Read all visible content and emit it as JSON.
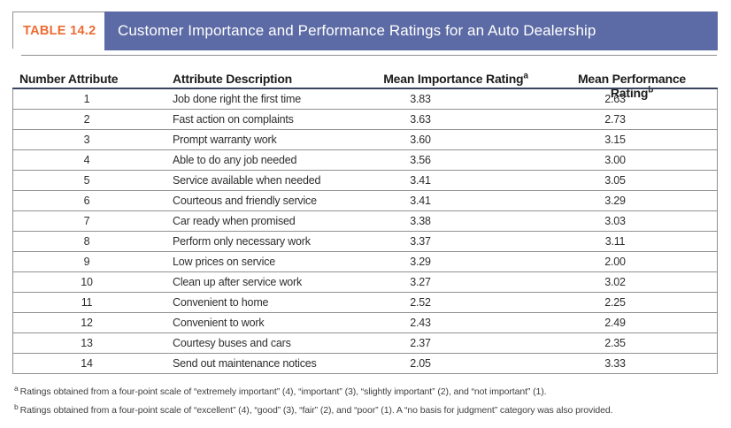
{
  "header": {
    "table_label": "TABLE 14.2",
    "title": "Customer Importance and Performance Ratings for an Auto Dealership"
  },
  "table": {
    "columns": [
      {
        "label": "Number Attribute",
        "sup": ""
      },
      {
        "label": "Attribute Description",
        "sup": ""
      },
      {
        "label": "Mean Importance Rating",
        "sup": "a"
      },
      {
        "label": "Mean Performance Rating",
        "sup": "b"
      }
    ],
    "rows": [
      {
        "number": "1",
        "description": "Job done right the first time",
        "importance": "3.83",
        "performance": "2.63"
      },
      {
        "number": "2",
        "description": "Fast action on complaints",
        "importance": "3.63",
        "performance": "2.73"
      },
      {
        "number": "3",
        "description": "Prompt warranty work",
        "importance": "3.60",
        "performance": "3.15"
      },
      {
        "number": "4",
        "description": "Able to do any job needed",
        "importance": "3.56",
        "performance": "3.00"
      },
      {
        "number": "5",
        "description": "Service available when needed",
        "importance": "3.41",
        "performance": "3.05"
      },
      {
        "number": "6",
        "description": "Courteous and friendly service",
        "importance": "3.41",
        "performance": "3.29"
      },
      {
        "number": "7",
        "description": "Car ready when promised",
        "importance": "3.38",
        "performance": "3.03"
      },
      {
        "number": "8",
        "description": "Perform only necessary work",
        "importance": "3.37",
        "performance": "3.11"
      },
      {
        "number": "9",
        "description": "Low prices on service",
        "importance": "3.29",
        "performance": "2.00"
      },
      {
        "number": "10",
        "description": "Clean up after service work",
        "importance": "3.27",
        "performance": "3.02"
      },
      {
        "number": "11",
        "description": "Convenient to home",
        "importance": "2.52",
        "performance": "2.25"
      },
      {
        "number": "12",
        "description": "Convenient to work",
        "importance": "2.43",
        "performance": "2.49"
      },
      {
        "number": "13",
        "description": "Courtesy buses and cars",
        "importance": "2.37",
        "performance": "2.35"
      },
      {
        "number": "14",
        "description": "Send out maintenance notices",
        "importance": "2.05",
        "performance": "3.33"
      }
    ]
  },
  "footnotes": [
    {
      "sup": "a",
      "text": "Ratings obtained from a four-point scale of “extremely important” (4), “important” (3), “slightly important” (2), and “not important” (1)."
    },
    {
      "sup": "b",
      "text": "Ratings obtained from a four-point scale of “excellent” (4), “good” (3), “fair” (2), and “poor” (1). A “no basis for judgment” category was also provided."
    }
  ],
  "colors": {
    "accent_orange": "#ED6B33",
    "title_bar_blue": "#5C6BA5",
    "rule_gray": "#919191",
    "header_divider_navy": "#39445F",
    "text_dark": "#2E2E2E"
  }
}
